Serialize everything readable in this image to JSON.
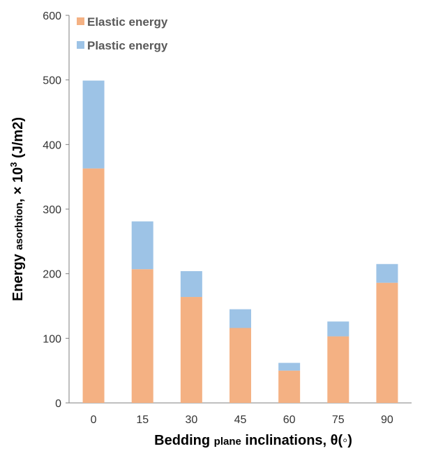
{
  "chart_data": {
    "type": "bar",
    "stacked": true,
    "categories": [
      "0",
      "15",
      "30",
      "45",
      "60",
      "75",
      "90"
    ],
    "series": [
      {
        "name": "Elastic energy",
        "values": [
          363,
          207,
          164,
          116,
          50,
          103,
          186
        ],
        "color": "#F4B183"
      },
      {
        "name": "Plastic energy",
        "values": [
          136,
          74,
          40,
          29,
          12,
          23,
          29
        ],
        "color": "#9DC3E6"
      }
    ],
    "xlabel": {
      "main": "Bedding ",
      "small": "plane",
      "rest": " inclinations, θ(◦)"
    },
    "ylabel": {
      "main": "Energy ",
      "small": "asorbtion",
      "rest": ", × 10",
      "sup": "3",
      "unit": " (J/m2)"
    },
    "ylim": [
      0,
      600
    ],
    "yticks": [
      0,
      100,
      200,
      300,
      400,
      500,
      600
    ],
    "legend_position": "top-left",
    "grid": false
  }
}
